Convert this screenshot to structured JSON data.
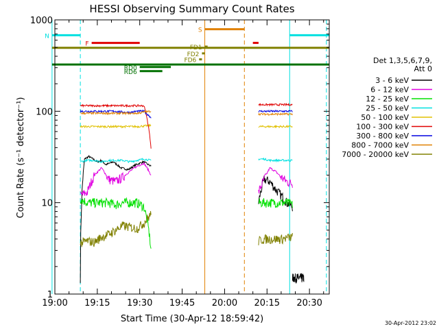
{
  "chart_data": {
    "type": "line",
    "title": "HESSI Observing Summary Count Rates",
    "xlabel": "Start Time (30-Apr-12 18:59:42)",
    "ylabel": "Count Rate (s⁻¹ detector⁻¹)",
    "y_scale": "log",
    "ylim": [
      1,
      1000
    ],
    "xlim": [
      "19:00",
      "20:37"
    ],
    "x_ticks": [
      "19:00",
      "19:15",
      "19:30",
      "19:45",
      "20:00",
      "20:15",
      "20:30"
    ],
    "y_ticks": [
      "1",
      "10",
      "100",
      "1000"
    ],
    "timestamp": "30-Apr-2012 23:02",
    "legend": {
      "header": [
        "Det 1,3,5,6,7,9,",
        "Att 0"
      ],
      "placement": "right"
    },
    "series": [
      {
        "name": "3 - 6 keV",
        "color": "#000000",
        "segments": [
          {
            "start": "19:09",
            "end": "19:18",
            "values": [
              1.5,
              30,
              32,
              30,
              28,
              29,
              26
            ]
          },
          {
            "start": "19:18",
            "end": "19:34",
            "values": [
              26,
              28,
              24,
              23,
              26,
              28,
              25
            ]
          },
          {
            "start": "20:12",
            "end": "20:24",
            "values": [
              10,
              18,
              17,
              14,
              12,
              10,
              9
            ]
          },
          {
            "start": "20:24",
            "end": "20:28",
            "values": [
              1.5,
              1.5,
              1.5
            ]
          }
        ]
      },
      {
        "name": "6 - 12 keV",
        "color": "#e000e0",
        "segments": [
          {
            "start": "19:09",
            "end": "19:34",
            "values": [
              12,
              13,
              20,
              24,
              18,
              17,
              19,
              22,
              25,
              27,
              20
            ]
          },
          {
            "start": "20:12",
            "end": "20:24",
            "values": [
              13,
              18,
              24,
              22,
              19,
              17,
              16
            ]
          }
        ]
      },
      {
        "name": "12 - 25 keV",
        "color": "#00e000",
        "segments": [
          {
            "start": "19:09",
            "end": "19:34",
            "values": [
              11,
              10,
              10,
              10,
              10,
              9.5,
              10,
              10,
              10,
              9,
              3
            ]
          },
          {
            "start": "20:12",
            "end": "20:24",
            "values": [
              10,
              10,
              10,
              10,
              10,
              10,
              9.5
            ]
          }
        ]
      },
      {
        "name": "25 - 50 keV",
        "color": "#00e0e0",
        "segments": [
          {
            "start": "19:09",
            "end": "19:34",
            "values": [
              28,
              29,
              29,
              28,
              29,
              29,
              29,
              28,
              29,
              30,
              29
            ]
          },
          {
            "start": "20:12",
            "end": "20:24",
            "values": [
              30,
              30,
              29,
              29,
              29,
              29,
              29
            ]
          }
        ]
      },
      {
        "name": "50 - 100 keV",
        "color": "#e0c000",
        "segments": [
          {
            "start": "19:09",
            "end": "19:34",
            "values": [
              68,
              68,
              68,
              68,
              68,
              68,
              68,
              68,
              68,
              69,
              70
            ]
          },
          {
            "start": "20:12",
            "end": "20:24",
            "values": [
              68,
              68,
              68,
              68,
              68,
              68,
              68
            ]
          }
        ]
      },
      {
        "name": "100 - 300 keV",
        "color": "#e00000",
        "segments": [
          {
            "start": "19:09",
            "end": "19:34",
            "values": [
              115,
              115,
              115,
              115,
              115,
              115,
              115,
              115,
              115,
              115,
              40
            ]
          },
          {
            "start": "20:12",
            "end": "20:24",
            "values": [
              118,
              118,
              118,
              118,
              118,
              118,
              118
            ]
          }
        ]
      },
      {
        "name": "300 - 800 keV",
        "color": "#0000e0",
        "segments": [
          {
            "start": "19:09",
            "end": "19:34",
            "values": [
              100,
              100,
              100,
              100,
              100,
              100,
              98,
              97,
              100,
              100,
              85
            ]
          },
          {
            "start": "20:12",
            "end": "20:24",
            "values": [
              100,
              100,
              100,
              100,
              100,
              100,
              100
            ]
          }
        ]
      },
      {
        "name": "800 - 7000 keV",
        "color": "#e08000",
        "segments": [
          {
            "start": "19:09",
            "end": "19:34",
            "values": [
              95,
              95,
              95,
              95,
              95,
              95,
              95,
              95,
              95,
              98,
              100
            ]
          },
          {
            "start": "20:12",
            "end": "20:24",
            "values": [
              93,
              93,
              93,
              93,
              93,
              93,
              93
            ]
          }
        ]
      },
      {
        "name": "7000 - 20000 keV",
        "color": "#808000",
        "segments": [
          {
            "start": "19:09",
            "end": "19:34",
            "values": [
              3.6,
              3.8,
              3.7,
              4.2,
              4.5,
              5.0,
              5.6,
              5.4,
              5.2,
              6.0,
              7.5
            ]
          },
          {
            "start": "20:12",
            "end": "20:24",
            "values": [
              3.8,
              4.0,
              4.0,
              4.0,
              4.0,
              4.1,
              4.2
            ]
          }
        ]
      }
    ],
    "flags": [
      {
        "name": "N",
        "color": "#00e0e0",
        "level": 680,
        "spans": [
          [
            "18:59",
            "19:09"
          ],
          [
            "20:23",
            "20:37"
          ]
        ]
      },
      {
        "name": "S",
        "color": "#e08000",
        "level": 790,
        "spans": [
          [
            "19:53",
            "20:07"
          ]
        ]
      },
      {
        "name": "F",
        "color": "#e00000",
        "level": 560,
        "spans": [
          [
            "19:13",
            "19:30"
          ],
          [
            "20:10",
            "20:12"
          ]
        ]
      },
      {
        "name": "FD1",
        "color": "#808000",
        "level": 510,
        "spans": [
          [
            "19:53",
            "19:54"
          ]
        ]
      },
      {
        "name": "FD2",
        "color": "#808000",
        "level": 430,
        "spans": [
          [
            "19:52",
            "19:53"
          ]
        ]
      },
      {
        "name": "FD6",
        "color": "#808000",
        "level": 370,
        "spans": [
          [
            "19:51",
            "19:52"
          ]
        ]
      },
      {
        "name": "",
        "color": "#808000",
        "level": 495,
        "spans": [
          [
            "18:59",
            "20:37"
          ]
        ]
      },
      {
        "name": "",
        "color": "#007000",
        "level": 325,
        "spans": [
          [
            "18:59",
            "20:37"
          ]
        ]
      },
      {
        "name": "RD0",
        "color": "#007000",
        "level": 305,
        "spans": [
          [
            "19:30",
            "19:41"
          ]
        ]
      },
      {
        "name": "RD6",
        "color": "#007000",
        "level": 275,
        "spans": [
          [
            "19:30",
            "19:38"
          ]
        ]
      }
    ],
    "markers": [
      {
        "time": "18:59",
        "color": "#00e0e0",
        "style": "solid"
      },
      {
        "time": "19:09",
        "color": "#00e0e0",
        "style": "dashed"
      },
      {
        "time": "19:53",
        "color": "#e08000",
        "style": "solid"
      },
      {
        "time": "20:07",
        "color": "#e08000",
        "style": "dashed"
      },
      {
        "time": "20:23",
        "color": "#00e0e0",
        "style": "solid"
      },
      {
        "time": "20:36",
        "color": "#00e0e0",
        "style": "dashed"
      }
    ]
  }
}
